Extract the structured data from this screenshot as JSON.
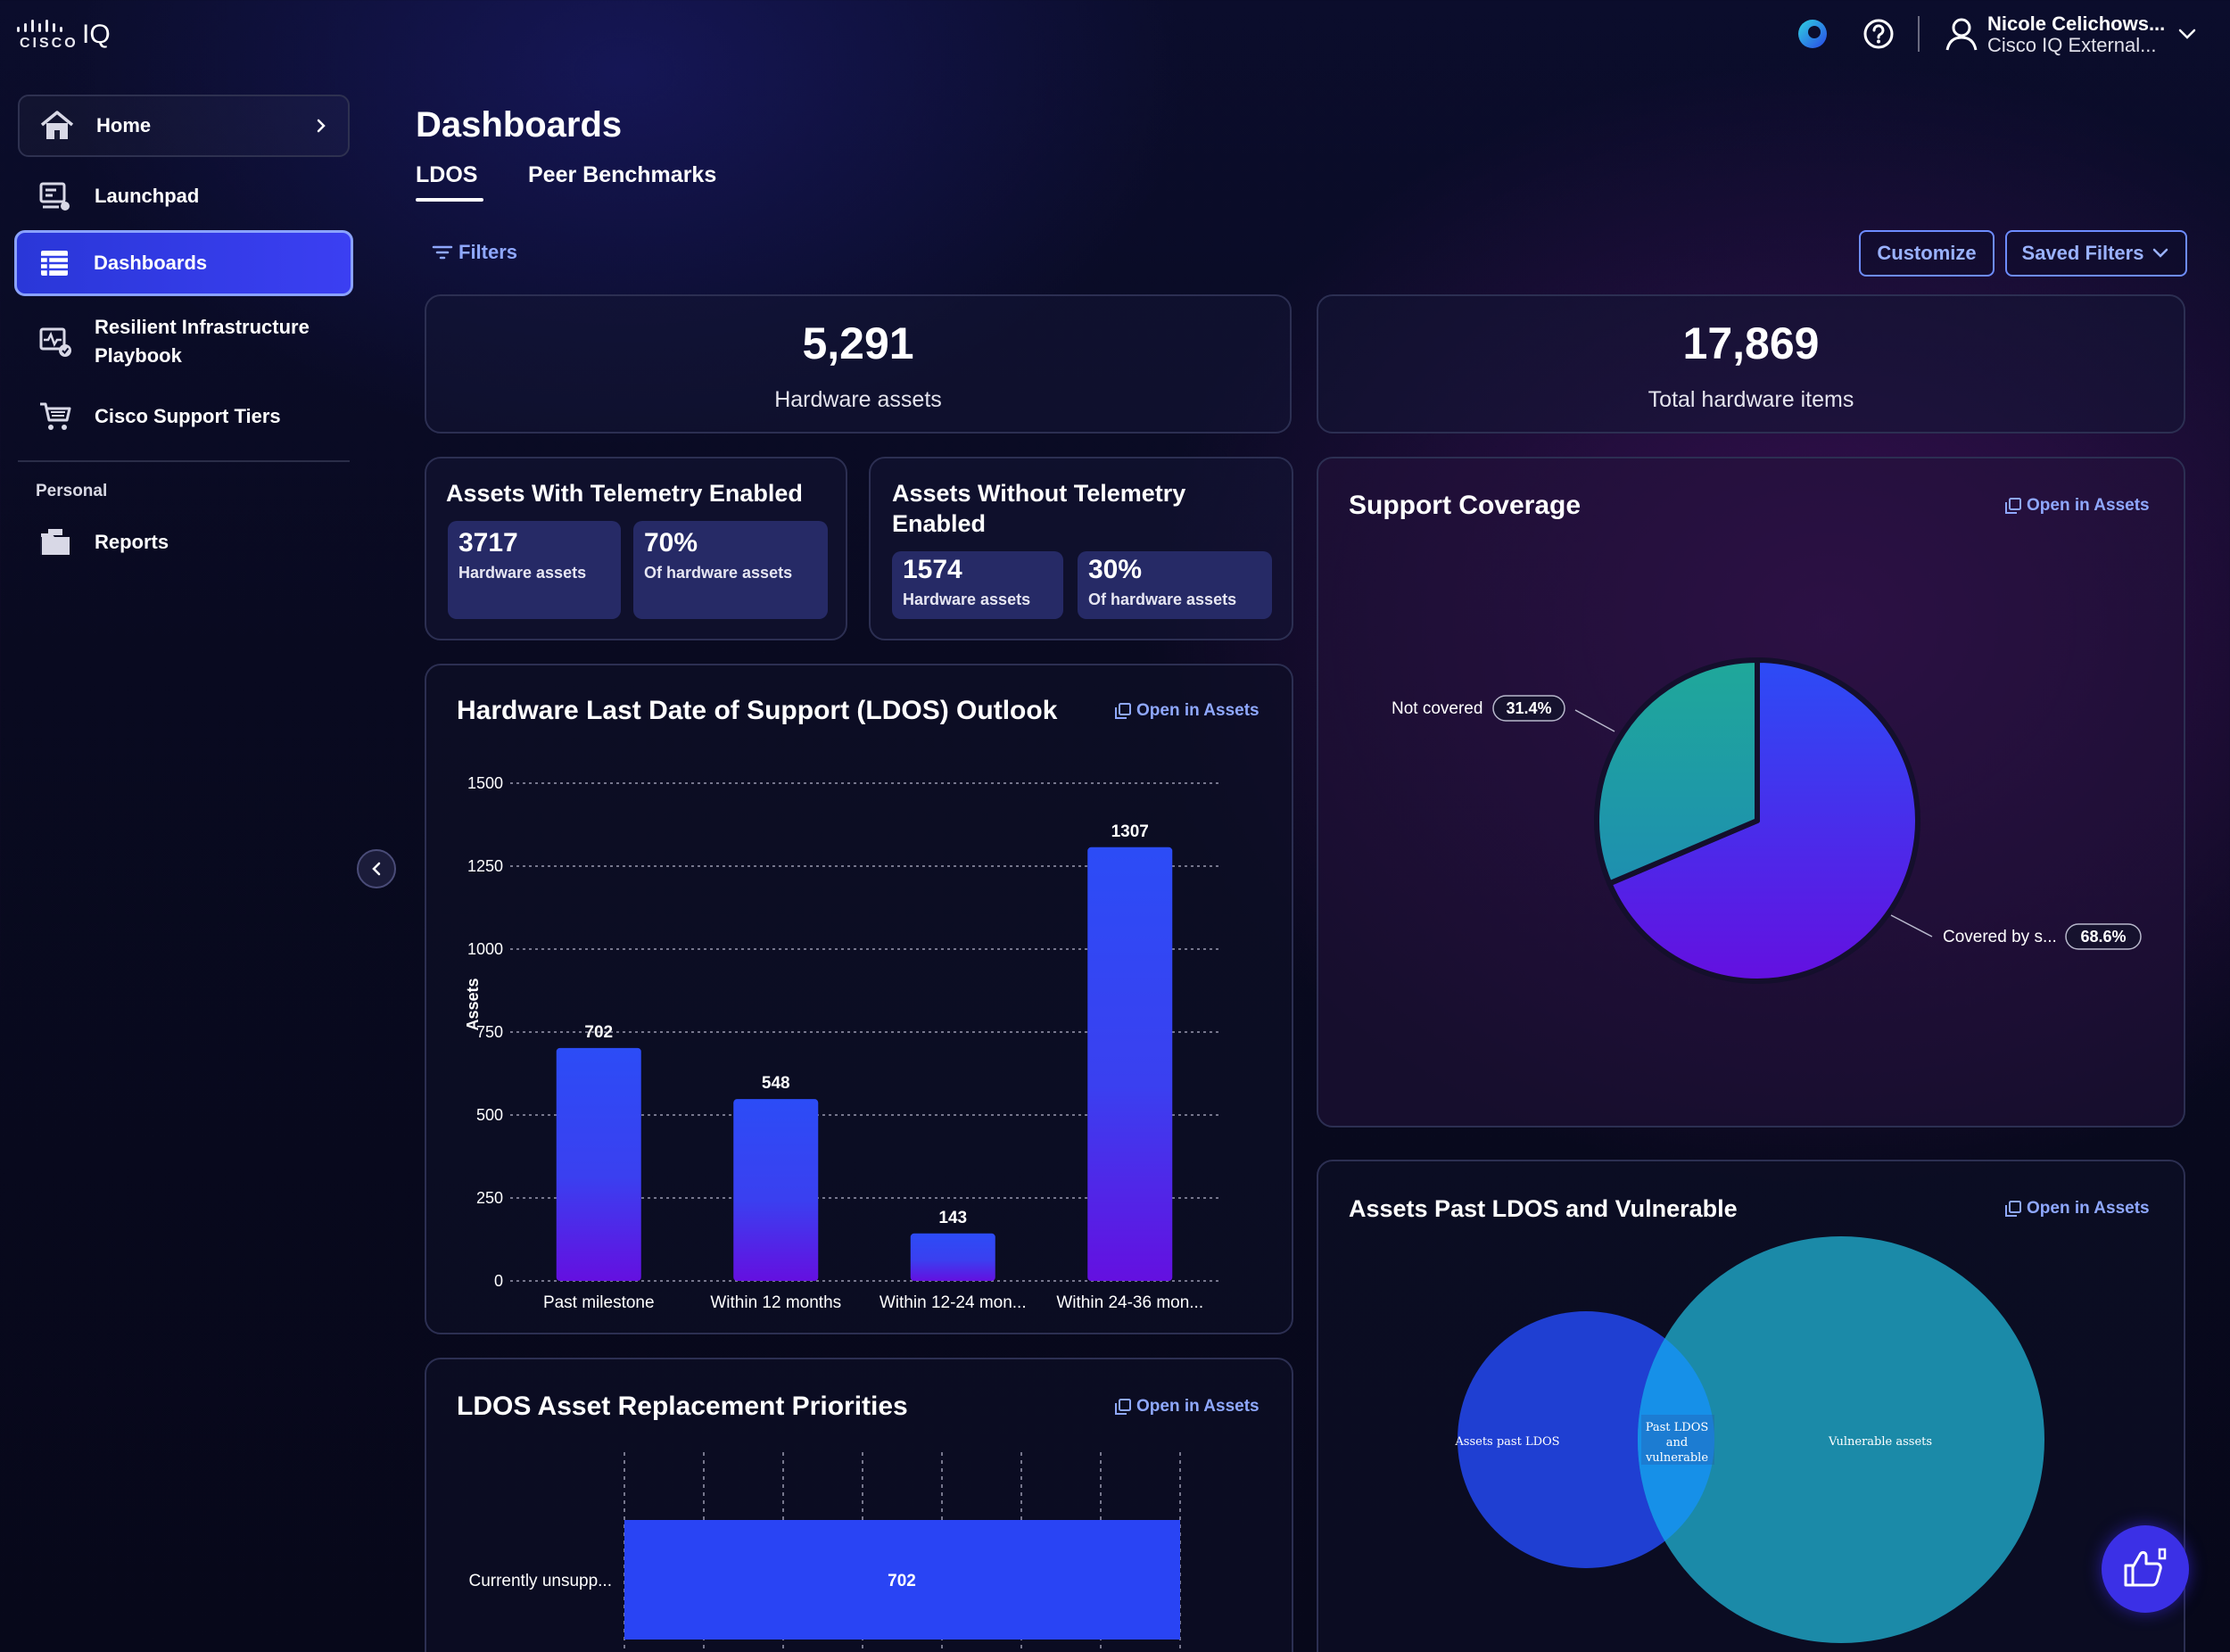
{
  "brand": {
    "logo_word": "CISCO",
    "product": "IQ"
  },
  "topbar": {
    "user_name": "Nicole Celichows...",
    "user_org": "Cisco IQ External..."
  },
  "sidebar": {
    "items": [
      {
        "label": "Home"
      },
      {
        "label": "Launchpad"
      },
      {
        "label": "Dashboards"
      },
      {
        "label_line1": "Resilient Infrastructure",
        "label_line2": "Playbook"
      },
      {
        "label": "Cisco Support Tiers"
      }
    ],
    "personal_heading": "Personal",
    "personal_items": [
      {
        "label": "Reports"
      }
    ]
  },
  "header": {
    "title": "Dashboards",
    "tabs": [
      {
        "label": "LDOS"
      },
      {
        "label": "Peer Benchmarks"
      }
    ],
    "filters_label": "Filters",
    "customize_label": "Customize",
    "saved_filters_label": "Saved Filters"
  },
  "kpis": {
    "hardware_assets": {
      "value": "5,291",
      "label": "Hardware assets"
    },
    "total_items": {
      "value": "17,869",
      "label": "Total hardware items"
    }
  },
  "telemetry_enabled": {
    "title": "Assets With Telemetry Enabled",
    "count": "3717",
    "count_label": "Hardware assets",
    "pct": "70%",
    "pct_label": "Of hardware assets"
  },
  "telemetry_disabled": {
    "title_line1": "Assets Without Telemetry",
    "title_line2": "Enabled",
    "count": "1574",
    "count_label": "Hardware assets",
    "pct": "30%",
    "pct_label": "Of hardware assets"
  },
  "open_in_assets": "Open in Assets",
  "ldos_outlook": {
    "title": "Hardware Last Date of Support (LDOS) Outlook",
    "chart_data": {
      "type": "bar",
      "categories": [
        "Past milestone",
        "Within 12 months",
        "Within 12-24 mon...",
        "Within 24-36 mon..."
      ],
      "values": [
        702,
        548,
        143,
        1307
      ],
      "ylabel": "Assets",
      "ylim": [
        0,
        1500
      ],
      "yticks": [
        "0",
        "250",
        "500",
        "750",
        "1000",
        "1250",
        "1500"
      ],
      "grid": true
    }
  },
  "support_coverage": {
    "title": "Support Coverage",
    "chart_data": {
      "type": "pie",
      "slices": [
        {
          "label": "Not covered",
          "value": 31.4,
          "value_label": "31.4%",
          "color": "#1fa89a"
        },
        {
          "label": "Covered by s...",
          "value": 68.6,
          "value_label": "68.6%",
          "color": "#4a2cf0"
        }
      ]
    }
  },
  "replacement": {
    "title": "LDOS Asset Replacement Priorities",
    "chart_data": {
      "type": "bar",
      "orientation": "horizontal",
      "categories": [
        "Currently unsupp..."
      ],
      "values": [
        702
      ],
      "value_labels": [
        "702"
      ]
    }
  },
  "past_vulnerable": {
    "title": "Assets Past LDOS and Vulnerable",
    "venn": {
      "left_label": "Assets past LDOS",
      "overlap_line1": "Past LDOS",
      "overlap_line2": "and",
      "overlap_line3": "vulnerable",
      "right_label": "Vulnerable assets"
    }
  }
}
